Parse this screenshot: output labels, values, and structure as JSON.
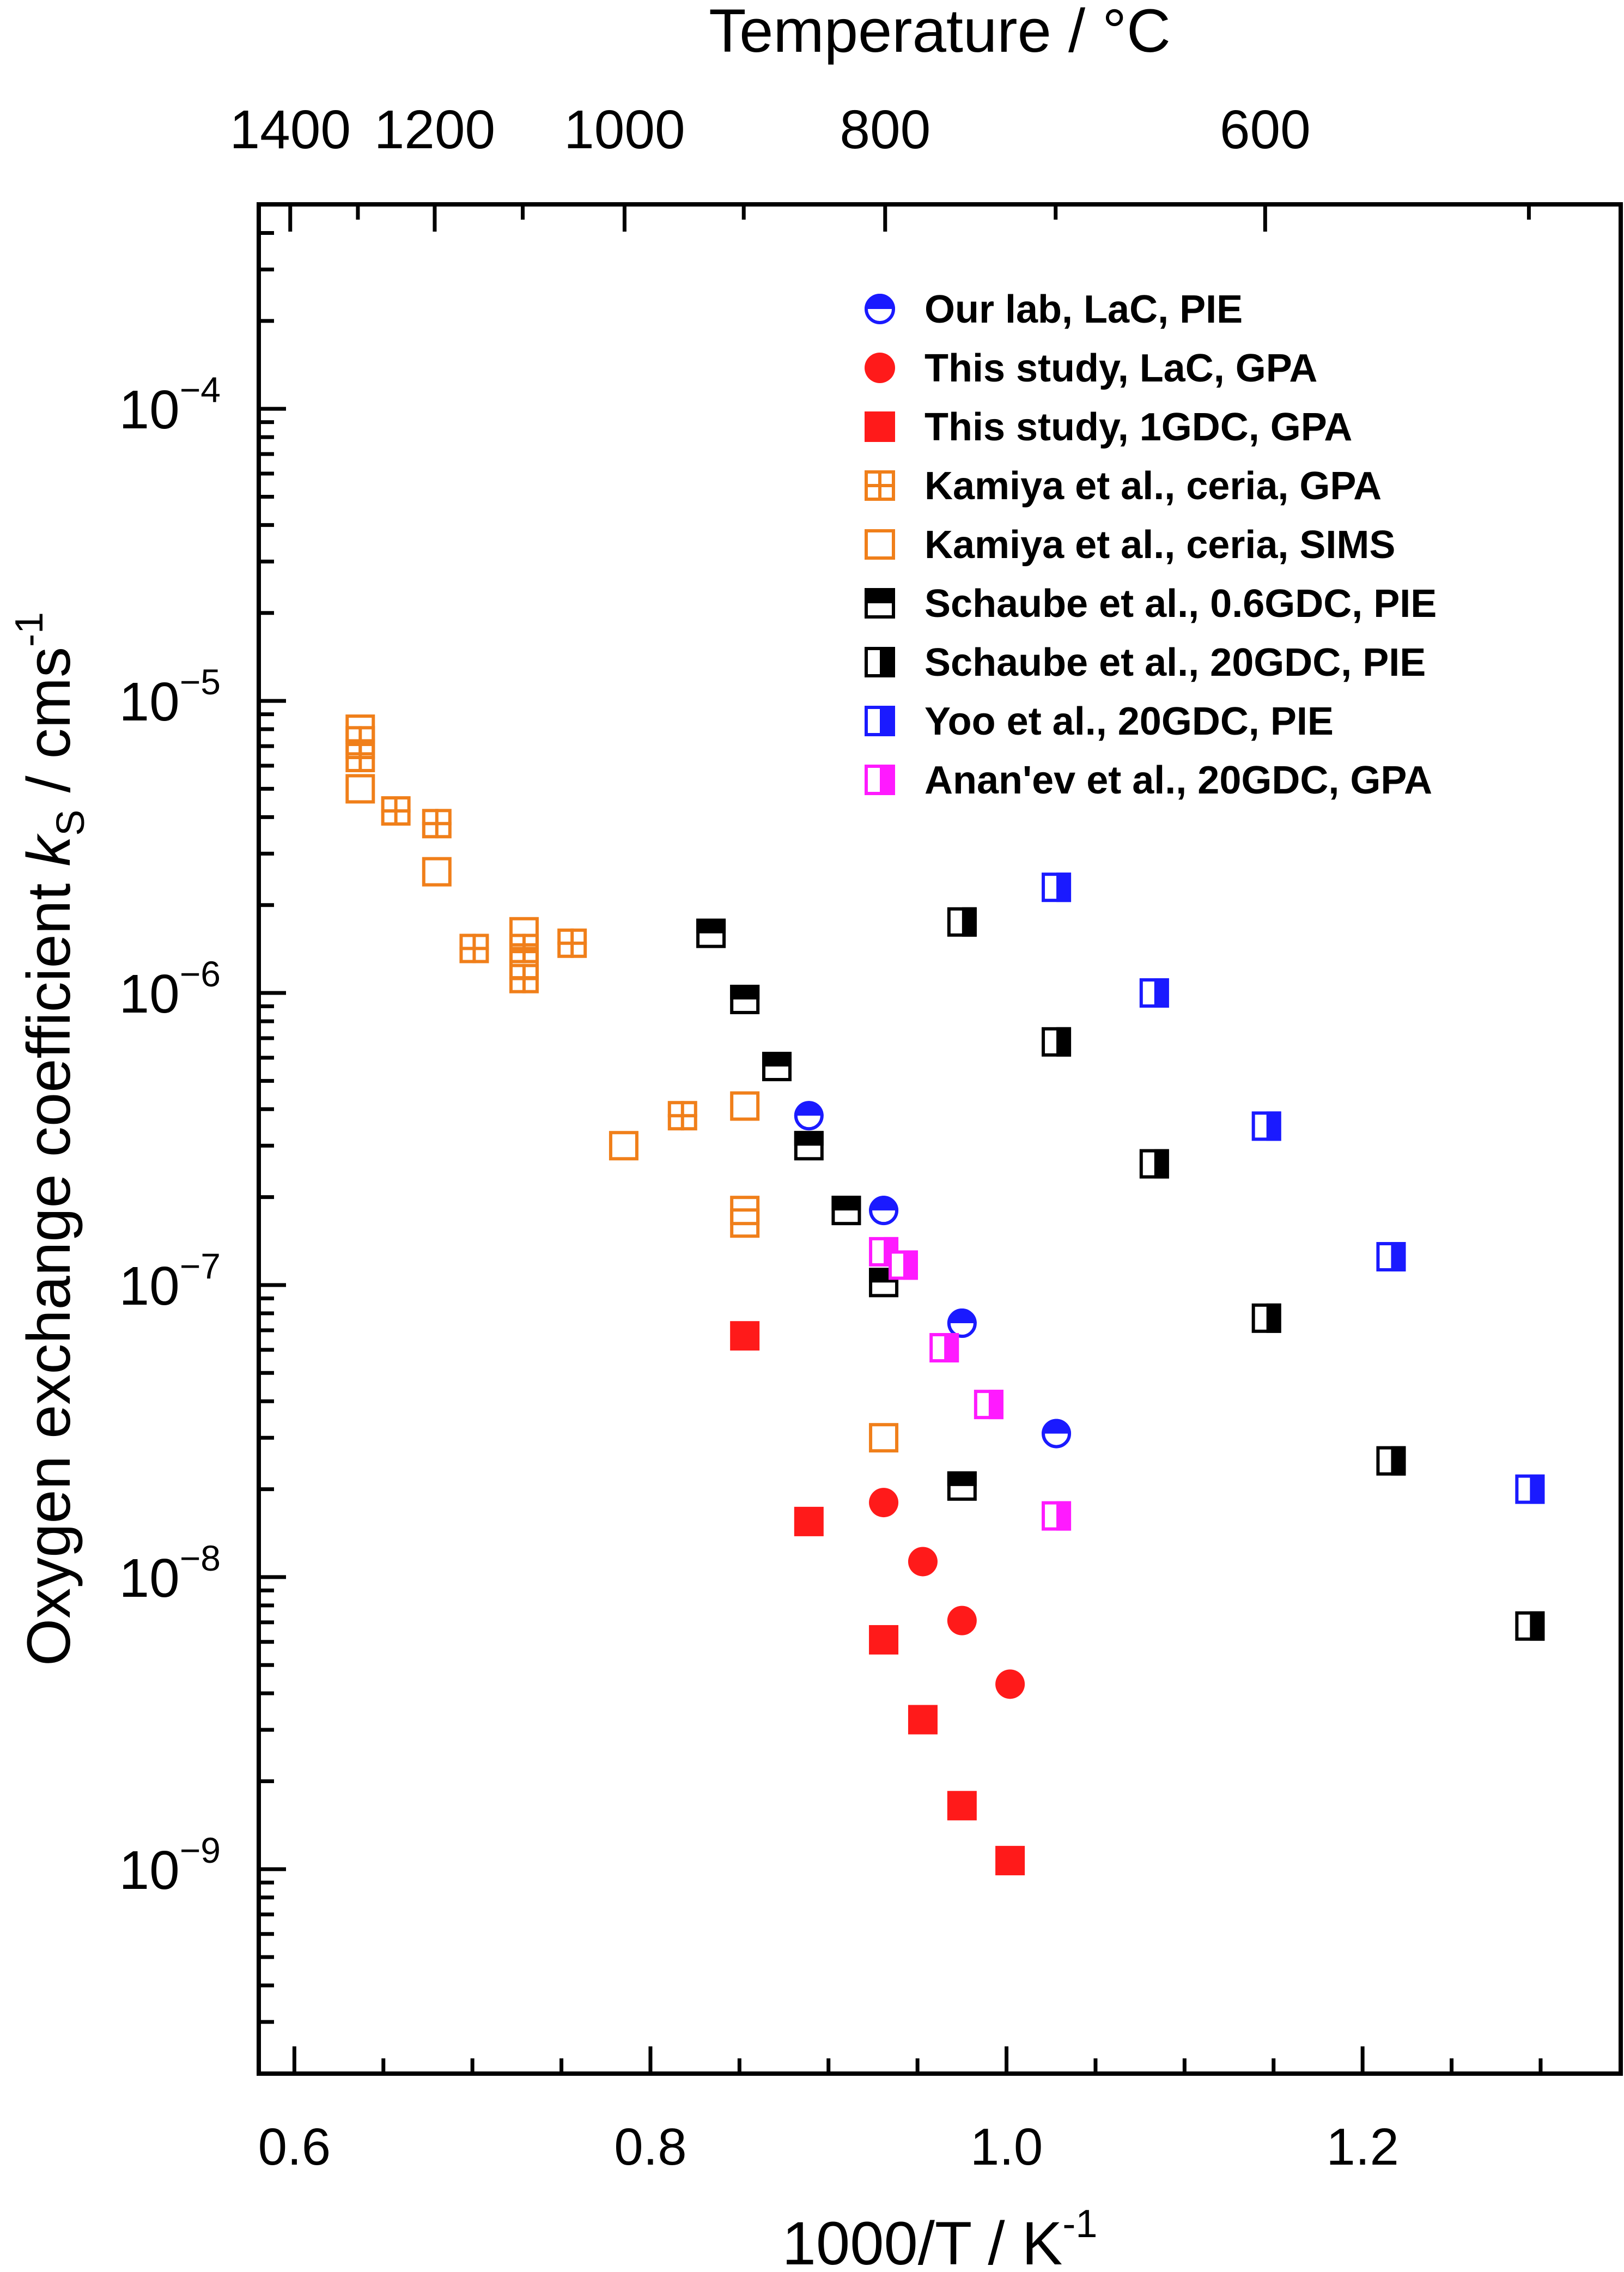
{
  "chart_data": {
    "type": "scatter",
    "xlabel_main": "1000/T / K",
    "xlabel_sup": "-1",
    "ylabel_main": "Oxygen exchange coefficient ",
    "ylabel_italic": "k",
    "ylabel_sub": "S",
    "ylabel_tail": " / cms",
    "ylabel_sup": "-1",
    "top_axis_label": "Temperature / °C",
    "xlim": [
      0.58,
      1.345
    ],
    "ylim_log10": [
      -9.7,
      -3.3
    ],
    "yscale": "log",
    "legend_position": "top-right",
    "x_ticks": [
      {
        "value": 0.6,
        "label": "0.6"
      },
      {
        "value": 0.8,
        "label": "0.8"
      },
      {
        "value": 1.0,
        "label": "1.0"
      },
      {
        "value": 1.2,
        "label": "1.2"
      }
    ],
    "y_ticks": [
      {
        "exp": -9,
        "base": "10",
        "sup": "−9"
      },
      {
        "exp": -8,
        "base": "10",
        "sup": "−8"
      },
      {
        "exp": -7,
        "base": "10",
        "sup": "−7"
      },
      {
        "exp": -6,
        "base": "10",
        "sup": "−6"
      },
      {
        "exp": -5,
        "base": "10",
        "sup": "−5"
      },
      {
        "exp": -4,
        "base": "10",
        "sup": "−4"
      }
    ],
    "top_ticks": [
      {
        "celsius": 1400,
        "label": "1400"
      },
      {
        "celsius": 1200,
        "label": "1200"
      },
      {
        "celsius": 1000,
        "label": "1000"
      },
      {
        "celsius": 800,
        "label": "800"
      },
      {
        "celsius": 600,
        "label": "600"
      }
    ],
    "series": [
      {
        "name": "Our lab, LaC, PIE",
        "marker": "circle-half-top",
        "color": "#1a1aff",
        "points": [
          [
            0.889,
            3.8e-07
          ],
          [
            0.931,
            1.8e-07
          ],
          [
            0.975,
            7.4e-08
          ],
          [
            1.028,
            3.1e-08
          ]
        ]
      },
      {
        "name": "This study, LaC, GPA",
        "marker": "circle-filled",
        "color": "#ff1a1a",
        "points": [
          [
            0.931,
            1.8e-08
          ],
          [
            0.953,
            1.13e-08
          ],
          [
            0.975,
            7.1e-09
          ],
          [
            1.002,
            4.3e-09
          ]
        ]
      },
      {
        "name": "This study, 1GDC, GPA",
        "marker": "square-filled",
        "color": "#ff1a1a",
        "points": [
          [
            0.853,
            6.7e-08
          ],
          [
            0.889,
            1.55e-08
          ],
          [
            0.931,
            6.1e-09
          ],
          [
            0.953,
            3.25e-09
          ],
          [
            0.975,
            1.65e-09
          ],
          [
            1.002,
            1.07e-09
          ]
        ]
      },
      {
        "name": "Kamiya et al., ceria, GPA",
        "marker": "square-grid",
        "color": "#f07f1a",
        "points": [
          [
            0.637,
            7.3e-06
          ],
          [
            0.637,
            6.4e-06
          ],
          [
            0.657,
            4.2e-06
          ],
          [
            0.68,
            3.8e-06
          ],
          [
            0.701,
            1.42e-06
          ],
          [
            0.729,
            1.42e-06
          ],
          [
            0.729,
            1.12e-06
          ],
          [
            0.756,
            1.48e-06
          ],
          [
            0.818,
            3.8e-07
          ]
        ]
      },
      {
        "name": "Kamiya et al., ceria, SIMS",
        "marker": "square-open",
        "color": "#f07f1a",
        "points": [
          [
            0.637,
            8e-06
          ],
          [
            0.637,
            5e-06
          ],
          [
            0.68,
            2.6e-06
          ],
          [
            0.729,
            1.62e-06
          ],
          [
            0.729,
            1.25e-06
          ],
          [
            0.785,
            3e-07
          ],
          [
            0.853,
            4.1e-07
          ],
          [
            0.853,
            1.8e-07
          ],
          [
            0.853,
            1.63e-07
          ],
          [
            0.931,
            3e-08
          ]
        ]
      },
      {
        "name": "Schaube et al., 0.6GDC, PIE",
        "marker": "square-half-top",
        "color": "#000000",
        "points": [
          [
            0.834,
            1.6e-06
          ],
          [
            0.853,
            9.5e-07
          ],
          [
            0.871,
            5.6e-07
          ],
          [
            0.889,
            3e-07
          ],
          [
            0.91,
            1.8e-07
          ],
          [
            0.931,
            1.02e-07
          ],
          [
            0.975,
            2.05e-08
          ]
        ]
      },
      {
        "name": "Schaube et al., 20GDC, PIE",
        "marker": "square-half-right",
        "color": "#000000",
        "points": [
          [
            0.975,
            1.75e-06
          ],
          [
            1.028,
            6.8e-07
          ],
          [
            1.083,
            2.6e-07
          ],
          [
            1.146,
            7.7e-08
          ],
          [
            1.216,
            2.5e-08
          ],
          [
            1.294,
            6.8e-09
          ]
        ]
      },
      {
        "name": "Yoo et al., 20GDC, PIE",
        "marker": "square-half-right",
        "color": "#1a1aff",
        "points": [
          [
            1.028,
            2.3e-06
          ],
          [
            1.083,
            1e-06
          ],
          [
            1.146,
            3.5e-07
          ],
          [
            1.216,
            1.25e-07
          ],
          [
            1.294,
            2e-08
          ]
        ]
      },
      {
        "name": "Anan'ev et al., 20GDC, GPA",
        "marker": "square-half-right",
        "color": "#ff1aff",
        "points": [
          [
            0.931,
            1.3e-07
          ],
          [
            0.942,
            1.17e-07
          ],
          [
            0.965,
            6.1e-08
          ],
          [
            0.99,
            3.9e-08
          ],
          [
            1.028,
            1.62e-08
          ]
        ]
      }
    ]
  }
}
